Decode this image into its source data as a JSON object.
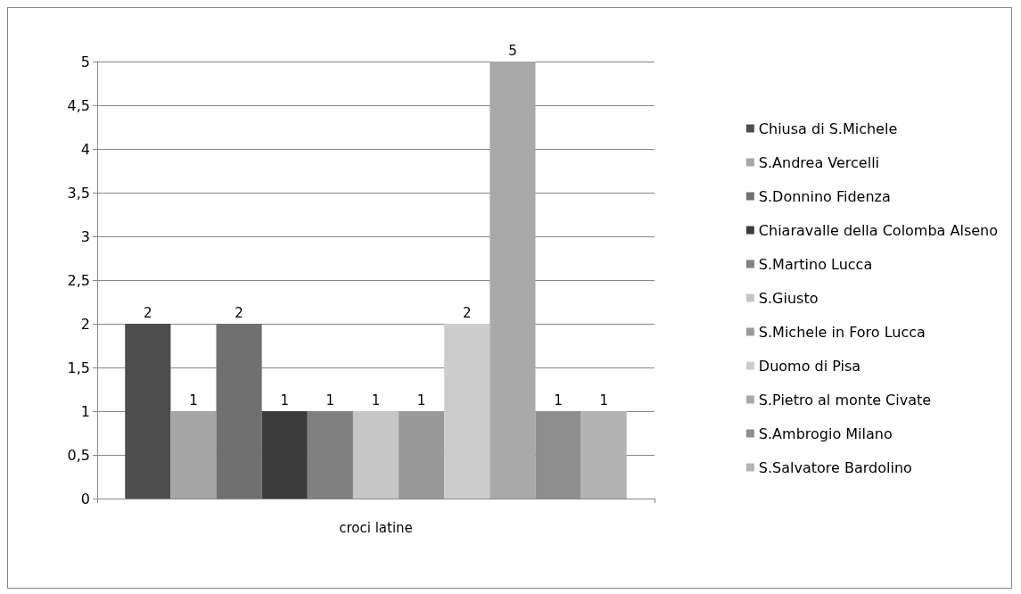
{
  "chart_data": {
    "type": "bar",
    "categories": [
      "croci latine"
    ],
    "series": [
      {
        "name": "Chiusa di S.Michele",
        "color": "#4d4d4d",
        "values": [
          2
        ]
      },
      {
        "name": "S.Andrea Vercelli",
        "color": "#a6a6a6",
        "values": [
          1
        ]
      },
      {
        "name": "S.Donnino Fidenza",
        "color": "#707070",
        "values": [
          2
        ]
      },
      {
        "name": "Chiaravalle della Colomba Alseno",
        "color": "#3c3c3c",
        "values": [
          1
        ]
      },
      {
        "name": "S.Martino Lucca",
        "color": "#808080",
        "values": [
          1
        ]
      },
      {
        "name": "S.Giusto",
        "color": "#c6c6c6",
        "values": [
          1
        ]
      },
      {
        "name": "S.Michele in Foro Lucca",
        "color": "#999999",
        "values": [
          1
        ]
      },
      {
        "name": "Duomo di Pisa",
        "color": "#cccccc",
        "values": [
          2
        ]
      },
      {
        "name": "S.Pietro al monte Civate",
        "color": "#a9a9a9",
        "values": [
          5
        ]
      },
      {
        "name": "S.Ambrogio Milano",
        "color": "#8e8e8e",
        "values": [
          1
        ]
      },
      {
        "name": "S.Salvatore Bardolino",
        "color": "#b3b3b3",
        "values": [
          1
        ]
      }
    ],
    "ylim": [
      0,
      5
    ],
    "yticks": [
      0,
      {
        "value": 0.5,
        "label": "0,5"
      },
      1,
      {
        "value": 1.5,
        "label": "1,5"
      },
      2,
      {
        "value": 2.5,
        "label": "2,5"
      },
      3,
      {
        "value": 3.5,
        "label": "3,5"
      },
      4,
      {
        "value": 4.5,
        "label": "4,5"
      },
      5
    ],
    "grid": "y",
    "legend": "right",
    "data_labels": true
  }
}
